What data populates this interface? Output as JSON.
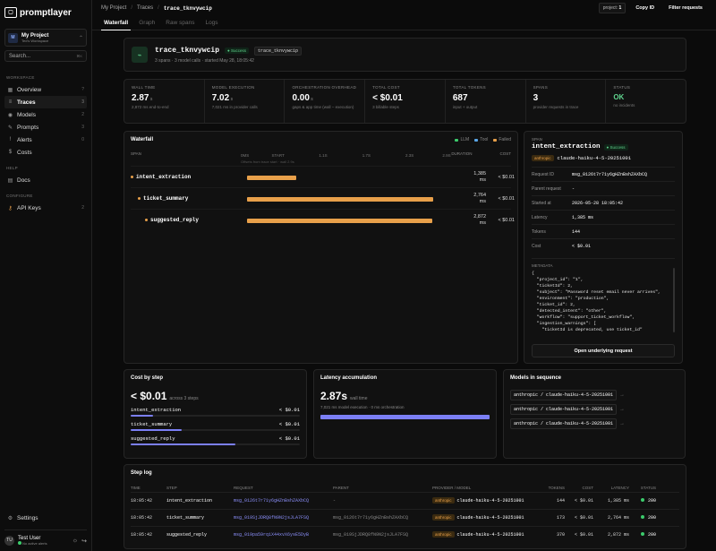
{
  "app": {
    "name": "promptlayer"
  },
  "project": {
    "name": "My Project",
    "workspace": "Ted's Workspace"
  },
  "search": {
    "label": "Search...",
    "shortcut": "⌘K"
  },
  "nav": {
    "workspace_label": "WORKSPACE",
    "items": [
      {
        "label": "Overview",
        "count": "?"
      },
      {
        "label": "Traces",
        "count": "3"
      },
      {
        "label": "Models",
        "count": "2"
      },
      {
        "label": "Prompts",
        "count": "3"
      },
      {
        "label": "Alerts",
        "count": "0"
      },
      {
        "label": "Costs",
        "count": ""
      }
    ],
    "help_label": "HELP",
    "help_items": [
      {
        "label": "Docs"
      }
    ],
    "configure_label": "CONFIGURE",
    "configure_items": [
      {
        "label": "API Keys",
        "count": "2"
      }
    ],
    "settings": "Settings"
  },
  "user": {
    "initials": "TU",
    "name": "Test User",
    "status": "No active alerts"
  },
  "breadcrumb": {
    "a": "My Project",
    "b": "Traces",
    "c": "trace_tknvywcip"
  },
  "topbar": {
    "project_label": "project:",
    "project_value": "1",
    "copy_id": "Copy ID",
    "filter": "Filter requests"
  },
  "tabs": [
    "Waterfall",
    "Graph",
    "Raw spans",
    "Logs"
  ],
  "trace": {
    "title": "trace_tknvywcip",
    "status": "Success",
    "tag": "trace_tknvywcip",
    "subtitle": "3 spans · 3 model calls · started May 28, 18:05:42"
  },
  "stats": [
    {
      "label": "WALL TIME",
      "value": "2.87",
      "unit": "s",
      "sub": "2,872 ms end-to-end"
    },
    {
      "label": "MODEL EXECUTION",
      "value": "7.02",
      "unit": "s",
      "sub": "7,021 ms in provider calls"
    },
    {
      "label": "ORCHESTRATION OVERHEAD",
      "value": "0.00",
      "unit": "s",
      "sub": "gaps & app time (wall − execution)"
    },
    {
      "label": "TOTAL COST",
      "value": "< $0.01",
      "unit": "",
      "sub": "3 billable steps"
    },
    {
      "label": "TOTAL TOKENS",
      "value": "687",
      "unit": "",
      "sub": "input + output"
    },
    {
      "label": "SPANS",
      "value": "3",
      "unit": "",
      "sub": "provider requests in trace"
    },
    {
      "label": "STATUS",
      "value": "OK",
      "unit": "",
      "sub": "no incidents"
    }
  ],
  "waterfall": {
    "title": "Waterfall",
    "legend": [
      {
        "label": "LLM",
        "color": "#3ccb6c"
      },
      {
        "label": "Tool",
        "color": "#5aa7e8"
      },
      {
        "label": "Failed",
        "color": "#e8a04a"
      }
    ],
    "col_span": "SPAN",
    "col_duration": "DURATION",
    "col_cost": "COST",
    "axis": [
      "0MS",
      "START",
      "1.1S",
      "1.7S",
      "2.3S",
      "2.9S"
    ],
    "axis_hint": "Offsets from trace start · wall 2.9s",
    "total_ms": 2872,
    "spans": [
      {
        "name": "intent_extraction",
        "start_ms": 0,
        "duration_ms": 1385,
        "duration": "1,385 ms",
        "cost": "< $0.01",
        "indent": 0
      },
      {
        "name": "ticket_summary",
        "start_ms": 0,
        "duration_ms": 2764,
        "duration": "2,764 ms",
        "cost": "< $0.01",
        "indent": 1
      },
      {
        "name": "suggested_reply",
        "start_ms": 0,
        "duration_ms": 2872,
        "duration": "2,872 ms",
        "cost": "< $0.01",
        "indent": 2
      }
    ]
  },
  "span": {
    "label": "SPAN",
    "name": "intent_extraction",
    "status": "Success",
    "provider": "anthropic",
    "model": "claude-haiku-4-5-20251001",
    "fields": [
      {
        "k": "Request ID",
        "v": "msg_0126t7r71y6gHZnBshZAXbCQ"
      },
      {
        "k": "Parent request",
        "v": "-"
      },
      {
        "k": "Started at",
        "v": "2026-05-28 18:05:42"
      },
      {
        "k": "Latency",
        "v": "1,385 ms"
      },
      {
        "k": "Tokens",
        "v": "144"
      },
      {
        "k": "Cost",
        "v": "< $0.01"
      }
    ],
    "metadata_label": "METADATA",
    "metadata": "{\n  \"project_id\": \"1\",\n  \"ticketId\": 2,\n  \"subject\": \"Password reset email never arrives\",\n  \"environment\": \"production\",\n  \"ticket_id\": 2,\n  \"detected_intent\": \"other\",\n  \"workflow\": \"support_ticket_workflow\",\n  \"ingestion_warnings\": [\n    \"ticketId is deprecated, use ticket_id\"",
    "open_button": "Open underlying request"
  },
  "cost_by_step": {
    "title": "Cost by step",
    "total": "< $0.01",
    "total_sub": "across 3 steps",
    "steps": [
      {
        "name": "intent_extraction",
        "cost": "< $0.01",
        "share": 0.13
      },
      {
        "name": "ticket_summary",
        "cost": "< $0.01",
        "share": 0.3
      },
      {
        "name": "suggested_reply",
        "cost": "< $0.01",
        "share": 0.62
      }
    ]
  },
  "latency": {
    "title": "Latency accumulation",
    "value": "2.87s",
    "value_sub": "wall time",
    "sub": "7,021 ms model execution · 0 ms orchestration"
  },
  "models_seq": {
    "title": "Models in sequence",
    "items": [
      "anthropic / claude-haiku-4-5-20251001",
      "anthropic / claude-haiku-4-5-20251001",
      "anthropic / claude-haiku-4-5-20251001"
    ]
  },
  "step_log": {
    "title": "Step log",
    "headers": [
      "TIME",
      "STEP",
      "REQUEST",
      "PARENT",
      "PROVIDER / MODEL",
      "TOKENS",
      "COST",
      "LATENCY",
      "STATUS"
    ],
    "rows": [
      {
        "time": "18:05:42",
        "step": "intent_extraction",
        "request": "msg_0126t7r71y6gHZnBshZAXbCQ",
        "parent": "-",
        "provider": "anthropic",
        "model": "claude-haiku-4-5-20251001",
        "tokens": "144",
        "cost": "< $0.01",
        "latency": "1,385 ms",
        "status": "200"
      },
      {
        "time": "18:05:42",
        "step": "ticket_summary",
        "request": "msg_019SjJDRQ8fN9N2jsJLA7FSQ",
        "parent": "msg_0126t7r71y6gHZnBshZAXbCQ",
        "provider": "anthropic",
        "model": "claude-haiku-4-5-20251001",
        "tokens": "173",
        "cost": "< $0.01",
        "latency": "2,764 ms",
        "status": "200"
      },
      {
        "time": "18:05:42",
        "step": "suggested_reply",
        "request": "msg_019pa59rqiX44xvX6ysE5DyB",
        "parent": "msg_019SjJDRQ8fN9N2jsJLA7FSQ",
        "provider": "anthropic",
        "model": "claude-haiku-4-5-20251001",
        "tokens": "370",
        "cost": "< $0.01",
        "latency": "2,872 ms",
        "status": "200"
      }
    ]
  }
}
